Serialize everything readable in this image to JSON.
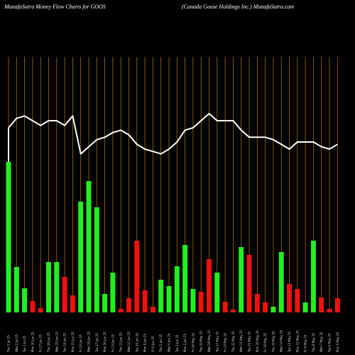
{
  "header": {
    "left": "MunafaSutra  Money Flow  Charts for GOOS",
    "right": "(Canada  Goose   Holdings Inc.) MunafaSutra.com"
  },
  "colors": {
    "background": "#000000",
    "gridline": "#b36a00",
    "up_bar": "#22ee22",
    "down_bar": "#ee1111",
    "line": "#ffffff"
  },
  "chart_data": {
    "type": "bar",
    "title": "",
    "xlabel": "",
    "ylabel": "",
    "grid": true,
    "categories": [
      "Thu 3 Jul 25",
      "Wed 2 Jul 25",
      "Tue 1 Jul 25",
      "Mon 30 Jun 25",
      "Fri 27 Jun 25",
      "Thu 26 Jun 25",
      "Wed 25 Jun 25",
      "Tue 24 Jun 25",
      "Mon 23 Jun 25",
      "Fri 20 Jun 25",
      "Wed 18 Jun 25",
      "Tue 17 Jun 25",
      "Mon 16 Jun 25",
      "Fri 13 Jun 25",
      "Thu 12 Jun 25",
      "Wed 11 Jun 25",
      "Tue 10 Jun 25",
      "Mon 9 Jun 25",
      "Fri 6 Jun 25",
      "Thu 5 Jun 25",
      "Wed 4 Jun 25",
      "Tue 3 Jun 25",
      "Mon 2 Jun 25",
      "Fri 30 May 25",
      "Thu 29 May 25",
      "Wed 28 May 25",
      "Tue 27 May 25",
      "Fri 23 May 25",
      "Thu 22 May 25",
      "Wed 21 May 25",
      "Tue 20 May 25",
      "Mon 19 May 25",
      "Fri 16 May 25",
      "Thu 15 May 25",
      "Wed 14 May 25",
      "Tue 13 May 25",
      "Mon 12 May 25",
      "Fri 9 May 25",
      "Thu 8 May 25",
      "Wed 7 May 25",
      "Tue 6 May 25",
      "Mon 5 May 25"
    ],
    "bar_directions": [
      "up",
      "up",
      "up",
      "down",
      "down",
      "up",
      "up",
      "down",
      "down",
      "up",
      "up",
      "up",
      "up",
      "up",
      "down",
      "down",
      "down",
      "down",
      "down",
      "up",
      "up",
      "up",
      "up",
      "up",
      "down",
      "down",
      "up",
      "down",
      "down",
      "up",
      "down",
      "down",
      "down",
      "up",
      "up",
      "down",
      "down",
      "up",
      "up",
      "down",
      "down",
      "down"
    ],
    "volume": [
      212,
      64,
      34,
      16,
      6,
      71,
      71,
      50,
      24,
      156,
      185,
      148,
      26,
      56,
      5,
      20,
      101,
      31,
      8,
      46,
      37,
      65,
      95,
      33,
      29,
      75,
      56,
      15,
      4,
      92,
      81,
      26,
      14,
      8,
      85,
      40,
      33,
      14,
      101,
      21,
      5,
      20
    ],
    "money_flow_line": [
      78,
      82,
      83,
      81,
      79,
      81,
      81,
      79,
      83,
      67,
      70,
      73,
      74,
      76,
      77,
      75,
      71,
      69,
      68,
      67,
      69,
      72,
      77,
      78,
      81,
      84,
      81,
      81,
      81,
      77,
      74,
      74,
      74,
      73,
      71,
      69,
      72,
      72,
      72,
      70,
      69,
      71
    ],
    "ylim": [
      0,
      100
    ]
  }
}
